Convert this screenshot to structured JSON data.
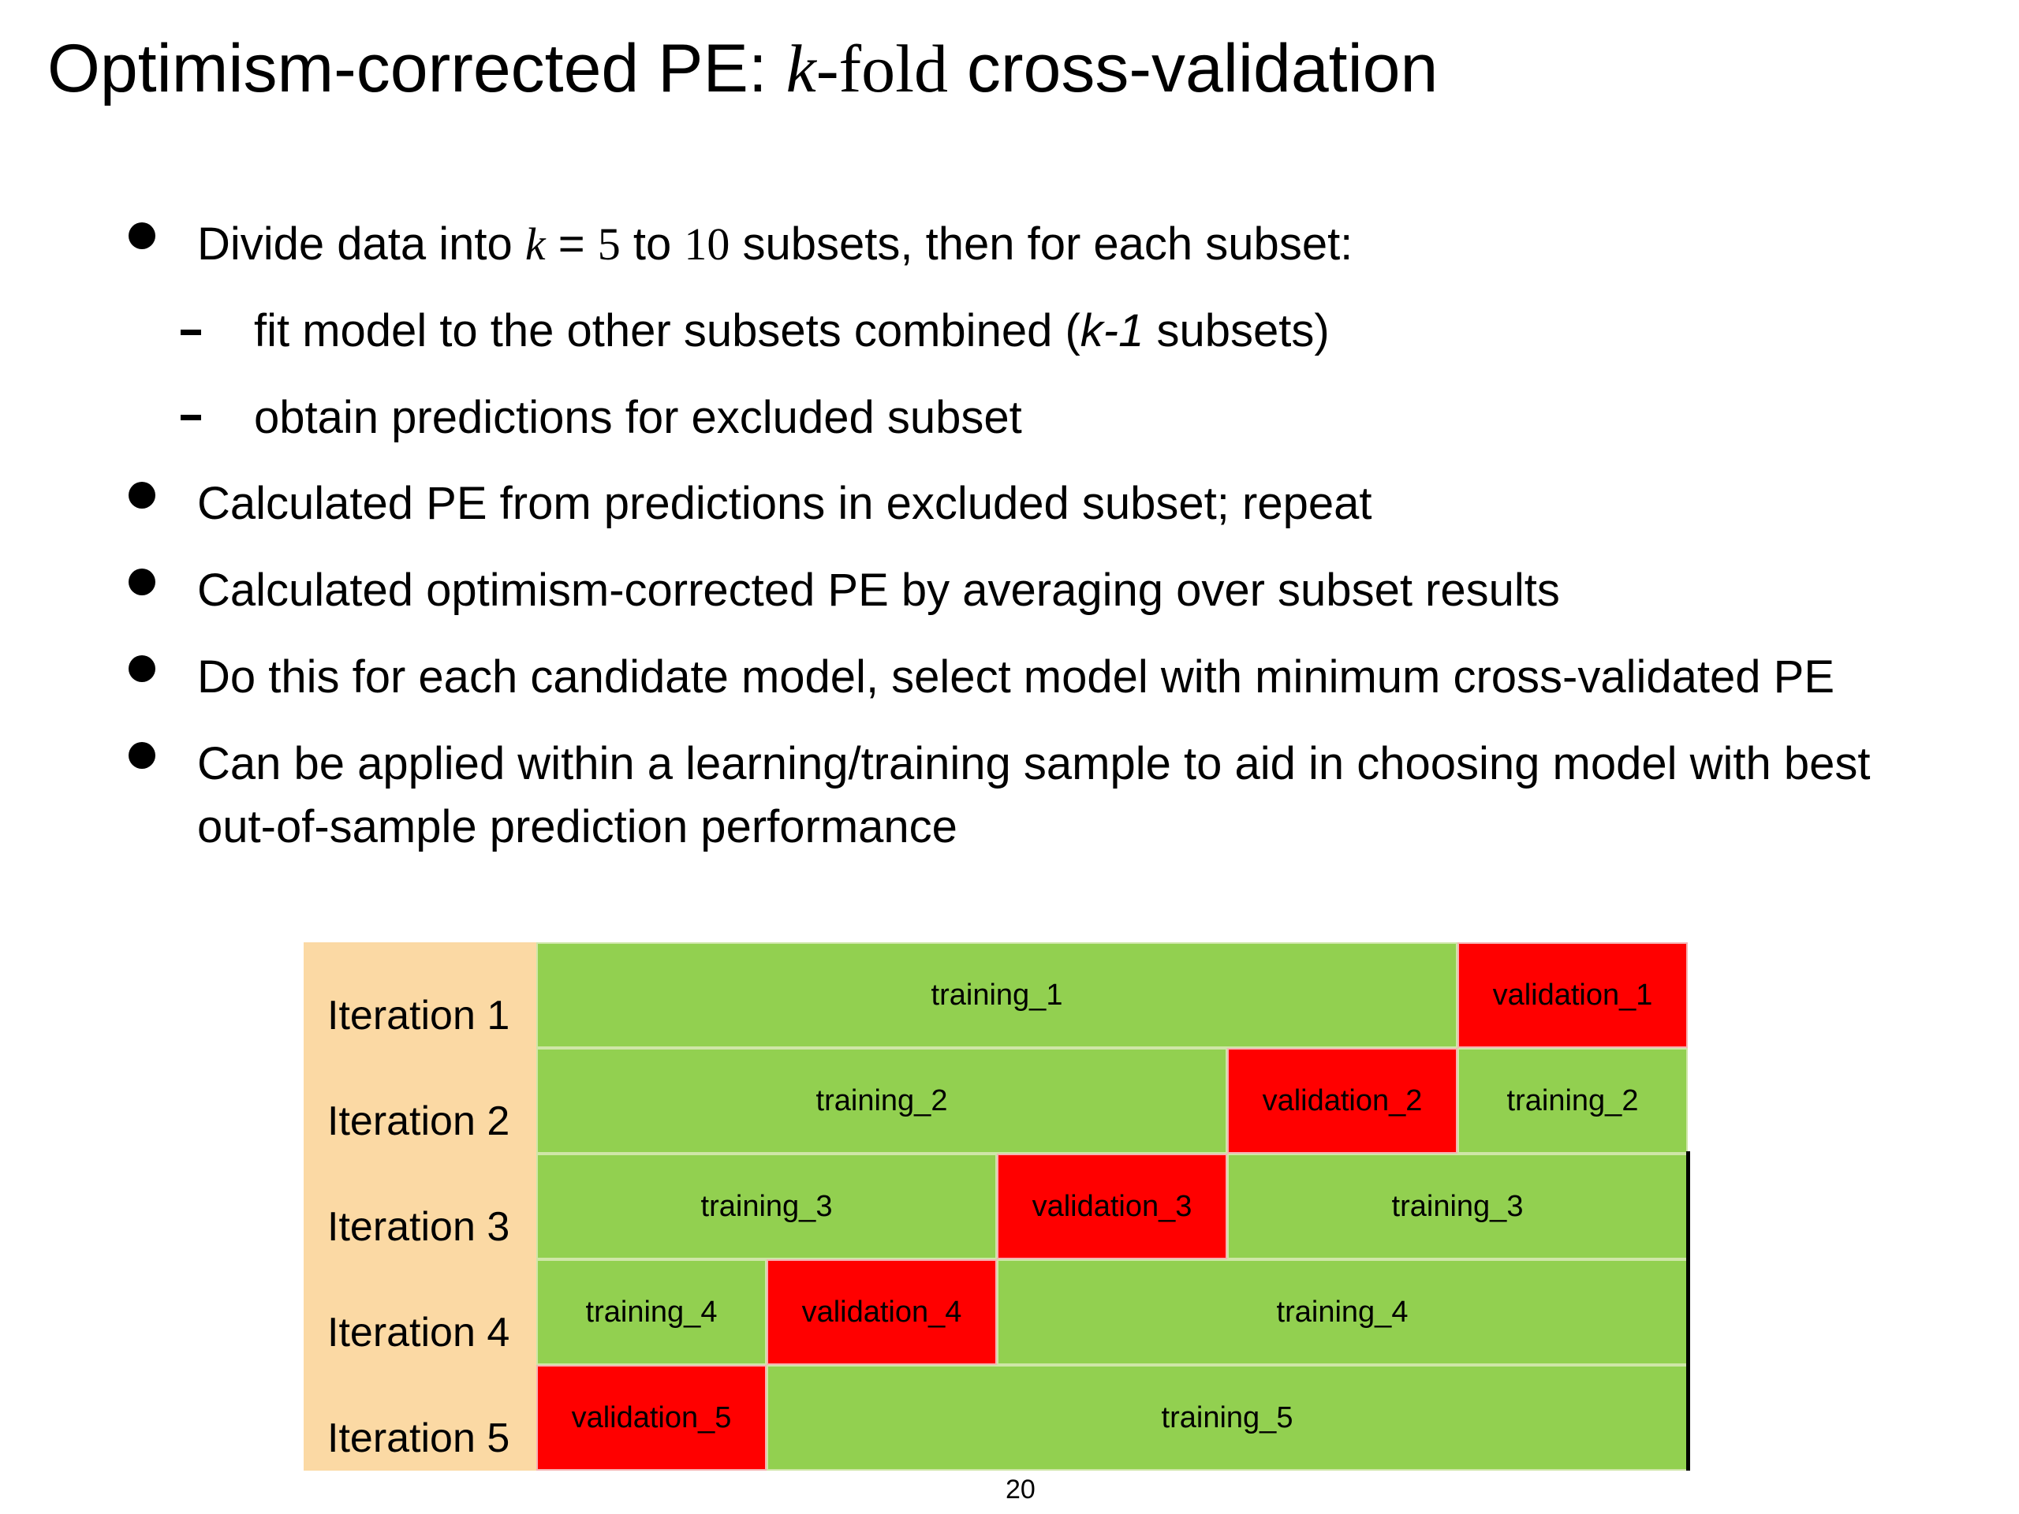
{
  "slide": {
    "title_prefix": "Optimism-corrected PE: ",
    "title_k": "k",
    "title_mid": "-fold",
    "title_suffix": " cross-validation",
    "bullets": [
      {
        "pre": "Divide data into ",
        "k": "k",
        "eq": " = ",
        "n1": "5",
        "to": " to ",
        "n2": "10",
        "post": " subsets, then for each subset:"
      },
      {
        "text": "Calculated PE from predictions in excluded subset; repeat"
      },
      {
        "text": "Calculated optimism-corrected PE by averaging over subset results"
      },
      {
        "text": "Do this for each candidate model, select model with minimum cross-validated PE"
      },
      {
        "line1": "Can be applied within a learning/training sample to aid in choosing model with best",
        "line2": "out-of-sample prediction performance"
      }
    ],
    "subbullets": [
      {
        "pre": "fit model to the other subsets combined (",
        "k": "k-1",
        "post": " subsets)"
      },
      {
        "text": "obtain predictions for excluded subset"
      }
    ],
    "page_number": "20"
  },
  "diagram": {
    "iterations": [
      {
        "label": "Iteration 1",
        "cells": [
          {
            "text": "training_1",
            "kind": "train"
          },
          {
            "text": "validation_1",
            "kind": "valid"
          }
        ]
      },
      {
        "label": "Iteration 2",
        "cells": [
          {
            "text": "training_2",
            "kind": "train"
          },
          {
            "text": "validation_2",
            "kind": "valid"
          },
          {
            "text": "training_2",
            "kind": "train"
          }
        ]
      },
      {
        "label": "Iteration 3",
        "cells": [
          {
            "text": "training_3",
            "kind": "train"
          },
          {
            "text": "validation_3",
            "kind": "valid"
          },
          {
            "text": "training_3",
            "kind": "train"
          }
        ]
      },
      {
        "label": "Iteration 4",
        "cells": [
          {
            "text": "training_4",
            "kind": "train"
          },
          {
            "text": "validation_4",
            "kind": "valid"
          },
          {
            "text": "training_4",
            "kind": "train"
          }
        ]
      },
      {
        "label": "Iteration 5",
        "cells": [
          {
            "text": "validation_5",
            "kind": "valid"
          },
          {
            "text": "training_5",
            "kind": "train"
          }
        ]
      }
    ],
    "colors": {
      "training": "#92d050",
      "validation": "#ff0000",
      "label_column": "#fbd9a4"
    }
  }
}
